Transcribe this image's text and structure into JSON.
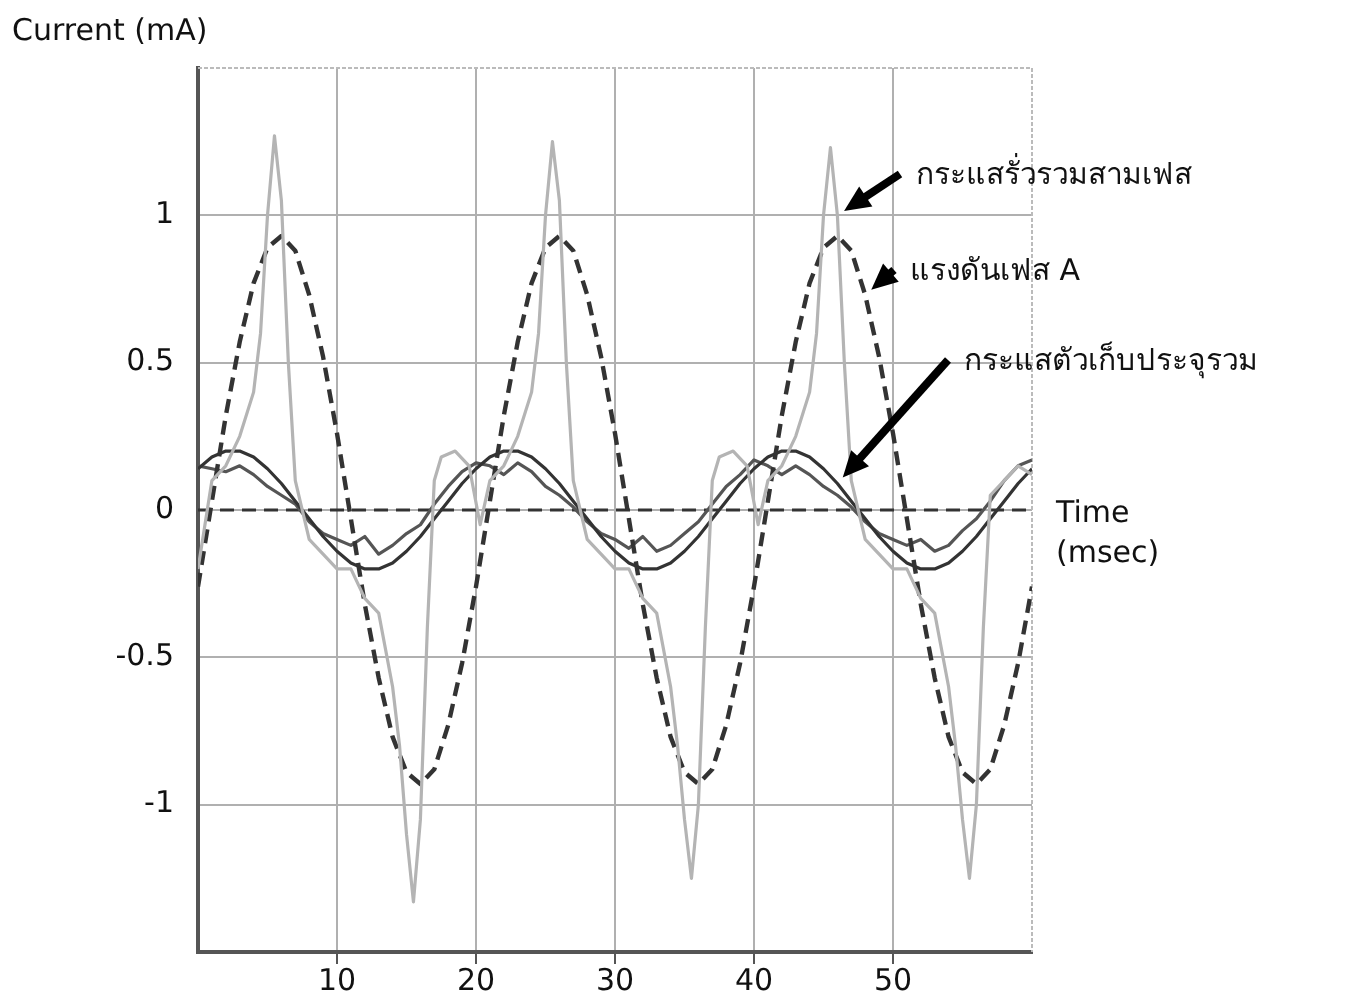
{
  "chart_data": {
    "type": "line",
    "ylabel": "Current (mA)",
    "xlabel": "Time (msec)",
    "xlim": [
      0,
      60
    ],
    "xticks": [
      10,
      20,
      30,
      40,
      50
    ],
    "ylim": [
      -1.5,
      1.5
    ],
    "yticks": [
      -1,
      -0.5,
      0,
      0.5,
      1
    ],
    "grid": true,
    "legend": false,
    "marker": "none",
    "ref_lines": [
      {
        "axis": "y",
        "value": 0,
        "color": "#333333",
        "line_style": "dashed"
      }
    ],
    "series": [
      {
        "name": "กระแสรั่วรวมสามเฟส",
        "color": "#b4b4b4",
        "line_style": "solid",
        "x": [
          0,
          1,
          2,
          3,
          4,
          4.5,
          5,
          5.5,
          6,
          6.5,
          7,
          8,
          9,
          10,
          11,
          12,
          13,
          14,
          14.5,
          15,
          15.5,
          16,
          16.5,
          17,
          17.5,
          18.5,
          19.5,
          20.3,
          21,
          22,
          23,
          24,
          24.5,
          25,
          25.5,
          26,
          26.5,
          27,
          28,
          29,
          30,
          31,
          32,
          33,
          34,
          34.5,
          35,
          35.5,
          36,
          36.5,
          37,
          37.5,
          38.5,
          39.5,
          40.3,
          41,
          42,
          43,
          44,
          44.5,
          45,
          45.5,
          46,
          46.5,
          47,
          48,
          49,
          50,
          51,
          52,
          53,
          54,
          54.5,
          55,
          55.5,
          56,
          56.5,
          57,
          58,
          59,
          60
        ],
        "values": [
          -0.2,
          0.1,
          0.15,
          0.25,
          0.4,
          0.6,
          1.0,
          1.27,
          1.05,
          0.5,
          0.1,
          -0.1,
          -0.15,
          -0.2,
          -0.2,
          -0.3,
          -0.35,
          -0.6,
          -0.8,
          -1.1,
          -1.33,
          -1.05,
          -0.4,
          0.1,
          0.18,
          0.2,
          0.15,
          -0.05,
          0.1,
          0.15,
          0.25,
          0.4,
          0.6,
          1.0,
          1.25,
          1.05,
          0.5,
          0.1,
          -0.1,
          -0.15,
          -0.2,
          -0.2,
          -0.3,
          -0.35,
          -0.6,
          -0.8,
          -1.05,
          -1.25,
          -1.0,
          -0.4,
          0.1,
          0.18,
          0.2,
          0.15,
          -0.05,
          0.1,
          0.15,
          0.25,
          0.4,
          0.6,
          1.0,
          1.23,
          1.0,
          0.5,
          0.1,
          -0.1,
          -0.15,
          -0.2,
          -0.2,
          -0.3,
          -0.35,
          -0.6,
          -0.8,
          -1.05,
          -1.25,
          -1.0,
          -0.4,
          0.05,
          0.1,
          0.15,
          0.12
        ]
      },
      {
        "name": "แรงดันเฟส A",
        "color": "#333333",
        "line_style": "dashed",
        "x": [
          0,
          1,
          2,
          3,
          4,
          5,
          6,
          7,
          8,
          9,
          10,
          11,
          12,
          13,
          14,
          15,
          16,
          17,
          18,
          19,
          20,
          21,
          22,
          23,
          24,
          25,
          26,
          27,
          28,
          29,
          30,
          31,
          32,
          33,
          34,
          35,
          36,
          37,
          38,
          39,
          40,
          41,
          42,
          43,
          44,
          45,
          46,
          47,
          48,
          49,
          50,
          51,
          52,
          53,
          54,
          55,
          56,
          57,
          58,
          59,
          60
        ],
        "values": [
          -0.26,
          0.03,
          0.32,
          0.57,
          0.77,
          0.89,
          0.93,
          0.88,
          0.73,
          0.52,
          0.26,
          -0.03,
          -0.32,
          -0.57,
          -0.77,
          -0.89,
          -0.93,
          -0.88,
          -0.73,
          -0.52,
          -0.26,
          0.03,
          0.32,
          0.57,
          0.77,
          0.89,
          0.93,
          0.88,
          0.73,
          0.52,
          0.26,
          -0.03,
          -0.32,
          -0.57,
          -0.77,
          -0.89,
          -0.93,
          -0.88,
          -0.73,
          -0.52,
          -0.26,
          0.03,
          0.32,
          0.57,
          0.77,
          0.89,
          0.93,
          0.88,
          0.73,
          0.52,
          0.26,
          -0.03,
          -0.32,
          -0.57,
          -0.77,
          -0.89,
          -0.93,
          -0.88,
          -0.73,
          -0.52,
          -0.26
        ]
      },
      {
        "name": "กระแสตัวเก็บประจุรวม",
        "color": "#333333",
        "line_style": "solid",
        "x": [
          0,
          1,
          2,
          3,
          4,
          5,
          6,
          7,
          8,
          9,
          10,
          11,
          12,
          13,
          14,
          15,
          16,
          17,
          18,
          19,
          20,
          21,
          22,
          23,
          24,
          25,
          26,
          27,
          28,
          29,
          30,
          31,
          32,
          33,
          34,
          35,
          36,
          37,
          38,
          39,
          40,
          41,
          42,
          43,
          44,
          45,
          46,
          47,
          48,
          49,
          50,
          51,
          52,
          53,
          54,
          55,
          56,
          57,
          58,
          59,
          60
        ],
        "values": [
          0.14,
          0.18,
          0.2,
          0.2,
          0.18,
          0.14,
          0.09,
          0.03,
          -0.03,
          -0.09,
          -0.14,
          -0.18,
          -0.2,
          -0.2,
          -0.18,
          -0.14,
          -0.09,
          -0.03,
          0.03,
          0.09,
          0.14,
          0.18,
          0.2,
          0.2,
          0.18,
          0.14,
          0.09,
          0.03,
          -0.03,
          -0.09,
          -0.14,
          -0.18,
          -0.2,
          -0.2,
          -0.18,
          -0.14,
          -0.09,
          -0.03,
          0.03,
          0.09,
          0.14,
          0.18,
          0.2,
          0.2,
          0.18,
          0.14,
          0.09,
          0.03,
          -0.03,
          -0.09,
          -0.14,
          -0.18,
          -0.2,
          -0.2,
          -0.18,
          -0.14,
          -0.09,
          -0.03,
          0.03,
          0.09,
          0.14
        ]
      },
      {
        "color": "#555555",
        "line_style": "solid",
        "x": [
          0,
          1,
          2,
          3,
          4,
          5,
          6,
          7,
          8,
          9,
          10,
          11,
          12,
          13,
          14,
          15,
          16,
          17,
          18,
          19,
          20,
          21,
          22,
          23,
          24,
          25,
          26,
          27,
          28,
          29,
          30,
          31,
          32,
          33,
          34,
          35,
          36,
          37,
          38,
          39,
          40,
          41,
          42,
          43,
          44,
          45,
          46,
          47,
          48,
          49,
          50,
          51,
          52,
          53,
          54,
          55,
          56,
          57,
          58,
          59,
          60
        ],
        "values": [
          0.15,
          0.14,
          0.13,
          0.15,
          0.12,
          0.08,
          0.05,
          0.02,
          -0.04,
          -0.08,
          -0.1,
          -0.12,
          -0.09,
          -0.15,
          -0.12,
          -0.08,
          -0.05,
          0.02,
          0.08,
          0.13,
          0.16,
          0.15,
          0.12,
          0.16,
          0.13,
          0.08,
          0.05,
          0.01,
          -0.04,
          -0.08,
          -0.1,
          -0.13,
          -0.09,
          -0.14,
          -0.12,
          -0.08,
          -0.04,
          0.02,
          0.08,
          0.12,
          0.17,
          0.15,
          0.12,
          0.15,
          0.12,
          0.08,
          0.05,
          0.01,
          -0.04,
          -0.08,
          -0.1,
          -0.12,
          -0.1,
          -0.14,
          -0.12,
          -0.07,
          -0.03,
          0.03,
          0.1,
          0.15,
          0.17
        ]
      }
    ]
  }
}
